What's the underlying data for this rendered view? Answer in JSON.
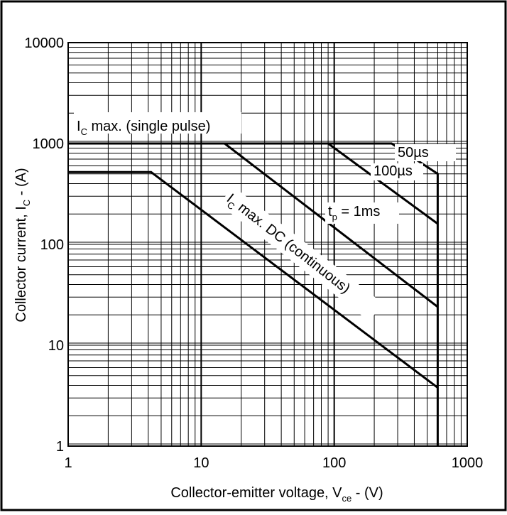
{
  "chart_data": {
    "type": "line",
    "xscale": "log",
    "yscale": "log",
    "xlim": [
      1,
      1000
    ],
    "ylim": [
      1,
      10000
    ],
    "grid": true,
    "xlabel": {
      "prefix": "Collector-emitter voltage, V",
      "sub": "ce",
      "suffix": " - (V)"
    },
    "ylabel": {
      "prefix": "Collector current, I",
      "sub": "C",
      "suffix": " - (A)"
    },
    "x_ticks": [
      {
        "value": 1,
        "label": "1"
      },
      {
        "value": 10,
        "label": "10"
      },
      {
        "value": 100,
        "label": "100"
      },
      {
        "value": 1000,
        "label": "1000"
      }
    ],
    "y_ticks": [
      {
        "value": 1,
        "label": "1"
      },
      {
        "value": 10,
        "label": "10"
      },
      {
        "value": 100,
        "label": "100"
      },
      {
        "value": 1000,
        "label": "1000"
      },
      {
        "value": 10000,
        "label": "10000"
      }
    ],
    "series": [
      {
        "name": "50µs",
        "points": [
          [
            1,
            1000
          ],
          [
            270,
            1000
          ],
          [
            600,
            500
          ],
          [
            600,
            1
          ]
        ]
      },
      {
        "name": "100µs",
        "points": [
          [
            90,
            1000
          ],
          [
            600,
            160
          ]
        ]
      },
      {
        "name": "tp = 1ms",
        "points": [
          [
            15,
            1000
          ],
          [
            600,
            24
          ]
        ]
      },
      {
        "name": "IC max. DC (continuous)",
        "points": [
          [
            1,
            520
          ],
          [
            4.2,
            520
          ],
          [
            600,
            3.8
          ]
        ]
      }
    ],
    "annotations": {
      "single_pulse": {
        "prefix": "I",
        "sub": "C",
        "suffix": " max. (single pulse)"
      },
      "t50": "50µs",
      "t100": "100µs",
      "t1ms": {
        "prefix": "t",
        "sub": "p",
        "suffix": " = 1ms"
      },
      "dc": {
        "prefix": "I",
        "sub": "C",
        "suffix": " max. DC (continuous)"
      }
    }
  }
}
